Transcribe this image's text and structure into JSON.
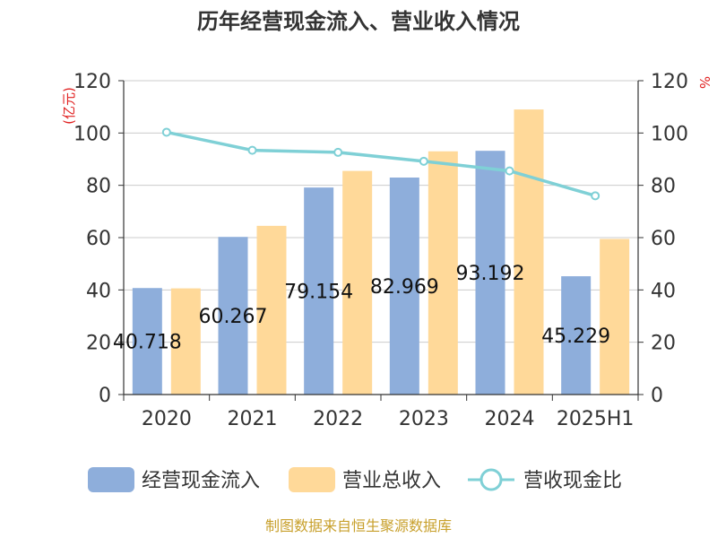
{
  "chart_data": {
    "type": "bar",
    "title": "历年经营现金流入、营业收入情况",
    "categories": [
      "2020",
      "2021",
      "2022",
      "2023",
      "2024",
      "2025H1"
    ],
    "left_axis": {
      "unit_label": "(亿元)",
      "ticks": [
        "0",
        "20",
        "40",
        "60",
        "80",
        "100",
        "120"
      ],
      "ylim": [
        0,
        120
      ]
    },
    "right_axis": {
      "unit_label": "%",
      "ticks": [
        "0",
        "20",
        "40",
        "60",
        "80",
        "100",
        "120"
      ],
      "ylim": [
        0,
        120
      ]
    },
    "grid": true,
    "legend_position": "bottom",
    "series": [
      {
        "name": "经营现金流入",
        "type": "bar",
        "axis": "left",
        "color": "#8eaedb",
        "values": [
          40.718,
          60.267,
          79.154,
          82.969,
          93.192,
          45.229
        ],
        "labels": [
          "40.718",
          "60.267",
          "79.154",
          "82.969",
          "93.192",
          "45.229"
        ]
      },
      {
        "name": "营业总收入",
        "type": "bar",
        "axis": "left",
        "color": "#ffd999",
        "values": [
          40.6,
          64.5,
          85.5,
          93.0,
          109.0,
          59.5
        ]
      },
      {
        "name": "营收现金比",
        "type": "line",
        "axis": "right",
        "color": "#7fd0d6",
        "values": [
          100.3,
          93.4,
          92.6,
          89.2,
          85.5,
          76.0
        ]
      }
    ]
  },
  "footer": {
    "source": "制图数据来自恒生聚源数据库"
  }
}
